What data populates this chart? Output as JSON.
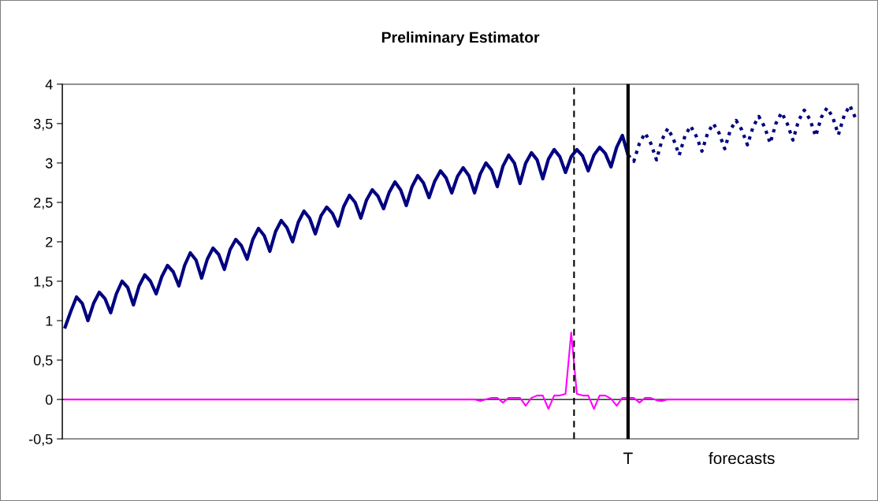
{
  "chart_data": {
    "type": "line",
    "title": "Preliminary Estimator",
    "annotations": [
      "T",
      "forecasts"
    ],
    "categories": [
      null,
      null,
      null,
      null,
      null,
      null,
      null,
      null,
      null,
      null,
      null,
      null,
      null,
      null,
      null,
      null,
      null,
      null,
      null,
      null,
      null,
      null,
      null,
      null,
      null,
      null,
      null,
      null,
      null,
      null,
      null,
      null,
      null,
      null,
      null,
      null,
      null,
      null,
      null,
      null,
      null,
      null,
      null,
      null,
      null,
      null,
      null,
      null,
      null,
      null,
      null,
      null,
      null,
      null,
      null,
      null,
      null,
      null,
      null,
      null,
      null,
      null,
      null,
      null,
      null,
      null,
      null,
      null,
      null,
      null,
      null,
      null,
      null,
      null,
      null,
      null,
      null,
      null,
      null,
      null,
      null,
      null,
      null,
      null,
      null,
      null,
      null,
      null,
      null,
      null,
      null,
      null,
      null,
      null,
      null,
      null,
      null,
      null,
      null,
      null,
      null,
      null,
      null,
      null,
      null,
      null,
      null,
      null,
      null,
      null,
      null,
      null,
      null,
      null,
      null,
      null,
      null,
      null,
      null,
      null,
      null,
      null,
      null,
      null,
      null,
      null,
      null,
      null,
      null,
      null,
      null,
      null,
      null,
      null,
      null,
      null,
      null,
      null,
      null,
      null
    ],
    "ylim": [
      -0.5,
      4
    ],
    "yticks": [
      {
        "value": -0.5,
        "label": "-0,5"
      },
      0,
      {
        "value": 0.5,
        "label": "0,5"
      },
      1,
      {
        "value": 1.5,
        "label": "1,5"
      },
      2,
      {
        "value": 2.5,
        "label": "2,5"
      },
      3,
      {
        "value": 3.5,
        "label": "3,5"
      },
      4
    ],
    "tick_labels": "y",
    "line_style": "solid",
    "series": [
      {
        "color": "#000080",
        "values": [
          0.92,
          1.12,
          1.3,
          1.22,
          1.0,
          1.22,
          1.36,
          1.28,
          1.1,
          1.34,
          1.5,
          1.42,
          1.2,
          1.44,
          1.58,
          1.5,
          1.34,
          1.56,
          1.7,
          1.62,
          1.44,
          1.7,
          1.86,
          1.77,
          1.54,
          1.78,
          1.92,
          1.84,
          1.65,
          1.9,
          2.03,
          1.95,
          1.78,
          2.03,
          2.17,
          2.08,
          1.88,
          2.13,
          2.27,
          2.18,
          2.0,
          2.25,
          2.39,
          2.3,
          2.1,
          2.33,
          2.44,
          2.36,
          2.2,
          2.45,
          2.59,
          2.5,
          2.3,
          2.53,
          2.66,
          2.58,
          2.42,
          2.63,
          2.76,
          2.66,
          2.46,
          2.7,
          2.84,
          2.75,
          2.56,
          2.77,
          2.9,
          2.81,
          2.62,
          2.83,
          2.94,
          2.84,
          2.62,
          2.86,
          3.0,
          2.91,
          2.7,
          2.96,
          3.1,
          3.0,
          2.74,
          3.0,
          3.13,
          3.04,
          2.8,
          3.05,
          3.17,
          3.08,
          2.88,
          3.08,
          3.17,
          3.09,
          2.9,
          3.1,
          3.2,
          3.12,
          2.95,
          3.2,
          3.35,
          3.1,
          null,
          null,
          null,
          null,
          null,
          null,
          null,
          null,
          null,
          null,
          null,
          null,
          null,
          null,
          null,
          null,
          null,
          null,
          null,
          null,
          null,
          null,
          null,
          null,
          null,
          null,
          null,
          null,
          null,
          null,
          null,
          null,
          null,
          null,
          null,
          null,
          null,
          null,
          null,
          null
        ]
      },
      {
        "color": "#000080",
        "line_style": "dotted",
        "values": [
          null,
          null,
          null,
          null,
          null,
          null,
          null,
          null,
          null,
          null,
          null,
          null,
          null,
          null,
          null,
          null,
          null,
          null,
          null,
          null,
          null,
          null,
          null,
          null,
          null,
          null,
          null,
          null,
          null,
          null,
          null,
          null,
          null,
          null,
          null,
          null,
          null,
          null,
          null,
          null,
          null,
          null,
          null,
          null,
          null,
          null,
          null,
          null,
          null,
          null,
          null,
          null,
          null,
          null,
          null,
          null,
          null,
          null,
          null,
          null,
          null,
          null,
          null,
          null,
          null,
          null,
          null,
          null,
          null,
          null,
          null,
          null,
          null,
          null,
          null,
          null,
          null,
          null,
          null,
          null,
          null,
          null,
          null,
          null,
          null,
          null,
          null,
          null,
          null,
          null,
          null,
          null,
          null,
          null,
          null,
          null,
          null,
          null,
          null,
          3.1,
          3.02,
          3.25,
          3.38,
          3.25,
          3.04,
          3.3,
          3.44,
          3.3,
          3.1,
          3.34,
          3.47,
          3.34,
          3.15,
          3.38,
          3.5,
          3.38,
          3.18,
          3.42,
          3.54,
          3.42,
          3.23,
          3.46,
          3.59,
          3.46,
          3.25,
          3.5,
          3.64,
          3.5,
          3.29,
          3.54,
          3.67,
          3.55,
          3.34,
          3.58,
          3.7,
          3.58,
          3.36,
          3.6,
          3.73,
          3.57
        ]
      },
      {
        "color": "#ff00ff",
        "values": [
          0,
          0,
          0,
          0,
          0,
          0,
          0,
          0,
          0,
          0,
          0,
          0,
          0,
          0,
          0,
          0,
          0,
          0,
          0,
          0,
          0,
          0,
          0,
          0,
          0,
          0,
          0,
          0,
          0,
          0,
          0,
          0,
          0,
          0,
          0,
          0,
          0,
          0,
          0,
          0,
          0,
          0,
          0,
          0,
          0,
          0,
          0,
          0,
          0,
          0,
          0,
          0,
          0,
          0,
          0,
          0,
          0,
          0,
          0,
          0,
          0,
          0,
          0,
          0,
          0,
          0,
          0,
          0,
          0,
          0,
          0,
          0,
          0,
          -0.02,
          0,
          0.02,
          0.02,
          -0.04,
          0.02,
          0.02,
          0.02,
          -0.08,
          0.02,
          0.05,
          0.05,
          -0.12,
          0.05,
          0.05,
          0.07,
          0.85,
          0.07,
          0.05,
          0.05,
          -0.12,
          0.05,
          0.05,
          0.01,
          -0.08,
          0.02,
          0.02,
          0.02,
          -0.04,
          0.02,
          0.02,
          -0.01,
          -0.02,
          0,
          0,
          0,
          0,
          0,
          0,
          0,
          0,
          0,
          0,
          0,
          0,
          0,
          0,
          0,
          0,
          0,
          0,
          0,
          0,
          0,
          0,
          0,
          0,
          0,
          0,
          0,
          0,
          0,
          0,
          0,
          0,
          0,
          0
        ]
      }
    ]
  }
}
